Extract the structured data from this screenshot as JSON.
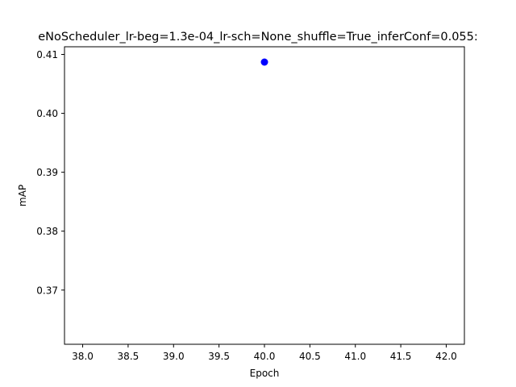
{
  "chart_data": {
    "type": "scatter",
    "title": "eNoScheduler_lr-beg=1.3e-04_lr-sch=None_shuffle=True_inferConf=0.055:",
    "xlabel": "Epoch",
    "ylabel": "mAP",
    "xlim": [
      37.8,
      42.2
    ],
    "ylim": [
      0.3608,
      0.4113
    ],
    "xticks": [
      "38.0",
      "38.5",
      "39.0",
      "39.5",
      "40.0",
      "40.5",
      "41.0",
      "41.5",
      "42.0"
    ],
    "yticks": [
      "0.37",
      "0.38",
      "0.39",
      "0.40",
      "0.41"
    ],
    "grid": false,
    "series": [
      {
        "color": "#0000ff",
        "points": [
          {
            "x": 40.0,
            "y": 0.4087
          }
        ]
      }
    ]
  }
}
